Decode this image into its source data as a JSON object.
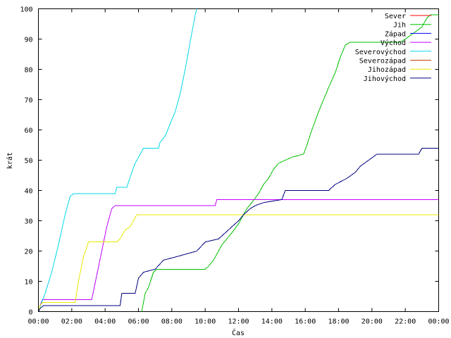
{
  "chart_data": {
    "type": "line",
    "xlabel": "Čas",
    "ylabel": "krát",
    "xlim": [
      0,
      24
    ],
    "ylim": [
      0,
      100
    ],
    "x_ticks": [
      {
        "value": 0,
        "label": "00:00"
      },
      {
        "value": 2,
        "label": "02:00"
      },
      {
        "value": 4,
        "label": "04:00"
      },
      {
        "value": 6,
        "label": "06:00"
      },
      {
        "value": 8,
        "label": "08:00"
      },
      {
        "value": 10,
        "label": "10:00"
      },
      {
        "value": 12,
        "label": "12:00"
      },
      {
        "value": 14,
        "label": "14:00"
      },
      {
        "value": 16,
        "label": "16:00"
      },
      {
        "value": 18,
        "label": "18:00"
      },
      {
        "value": 20,
        "label": "20:00"
      },
      {
        "value": 22,
        "label": "22:00"
      },
      {
        "value": 24,
        "label": "00:00"
      }
    ],
    "y_ticks": [
      0,
      10,
      20,
      30,
      40,
      50,
      60,
      70,
      80,
      90,
      100
    ],
    "grid": false,
    "legend_position": "top-right",
    "series": [
      {
        "name": "Sever",
        "color": "#ff0000",
        "points": []
      },
      {
        "name": "Jih",
        "color": "#00c000",
        "points": [
          [
            6.2,
            0
          ],
          [
            6.4,
            6
          ],
          [
            6.6,
            8
          ],
          [
            6.9,
            13
          ],
          [
            7.1,
            14
          ],
          [
            8.5,
            14
          ],
          [
            10.0,
            14
          ],
          [
            10.2,
            15
          ],
          [
            10.5,
            17
          ],
          [
            10.8,
            20
          ],
          [
            11.0,
            22
          ],
          [
            11.3,
            24
          ],
          [
            11.6,
            26
          ],
          [
            12.0,
            29
          ],
          [
            12.2,
            31
          ],
          [
            12.5,
            34
          ],
          [
            12.8,
            36
          ],
          [
            13.2,
            39
          ],
          [
            13.5,
            42
          ],
          [
            13.8,
            44
          ],
          [
            14.1,
            47
          ],
          [
            14.4,
            49
          ],
          [
            14.8,
            50
          ],
          [
            15.2,
            51
          ],
          [
            15.9,
            52
          ],
          [
            16.1,
            55
          ],
          [
            16.4,
            60
          ],
          [
            16.8,
            66
          ],
          [
            17.1,
            70
          ],
          [
            17.4,
            74
          ],
          [
            17.8,
            79
          ],
          [
            18.1,
            84
          ],
          [
            18.4,
            88
          ],
          [
            18.7,
            89
          ],
          [
            21.7,
            89
          ],
          [
            22.0,
            90
          ],
          [
            22.5,
            92
          ],
          [
            23.0,
            94
          ],
          [
            23.3,
            97
          ],
          [
            23.5,
            98
          ],
          [
            24.0,
            98
          ]
        ]
      },
      {
        "name": "Západ",
        "color": "#0000ff",
        "points": []
      },
      {
        "name": "Východ",
        "color": "#c000ff",
        "points": [
          [
            0,
            0
          ],
          [
            0.1,
            2
          ],
          [
            0.25,
            4
          ],
          [
            3.2,
            4
          ],
          [
            3.5,
            12
          ],
          [
            3.8,
            20
          ],
          [
            4.1,
            28
          ],
          [
            4.4,
            34
          ],
          [
            4.6,
            35
          ],
          [
            10.6,
            35
          ],
          [
            10.7,
            37
          ],
          [
            24.0,
            37
          ]
        ]
      },
      {
        "name": "Severovýchod",
        "color": "#00d8e8",
        "points": [
          [
            0,
            0
          ],
          [
            0.2,
            3
          ],
          [
            0.4,
            6
          ],
          [
            0.8,
            13
          ],
          [
            1.2,
            22
          ],
          [
            1.6,
            32
          ],
          [
            1.9,
            38
          ],
          [
            2.1,
            39
          ],
          [
            4.6,
            39
          ],
          [
            4.7,
            41
          ],
          [
            5.3,
            41
          ],
          [
            5.6,
            46
          ],
          [
            5.8,
            49
          ],
          [
            6.1,
            52
          ],
          [
            6.3,
            54
          ],
          [
            7.2,
            54
          ],
          [
            7.3,
            56
          ],
          [
            7.6,
            58
          ],
          [
            7.9,
            62
          ],
          [
            8.2,
            66
          ],
          [
            8.5,
            72
          ],
          [
            8.8,
            80
          ],
          [
            9.0,
            86
          ],
          [
            9.2,
            92
          ],
          [
            9.4,
            98
          ],
          [
            9.5,
            100
          ]
        ]
      },
      {
        "name": "Severozápad",
        "color": "#c04000",
        "points": []
      },
      {
        "name": "Jihozápad",
        "color": "#e8e800",
        "points": [
          [
            0,
            0
          ],
          [
            0.1,
            2
          ],
          [
            0.25,
            3
          ],
          [
            2.2,
            3
          ],
          [
            2.4,
            10
          ],
          [
            2.7,
            18
          ],
          [
            3.0,
            23
          ],
          [
            4.7,
            23
          ],
          [
            4.9,
            24
          ],
          [
            5.2,
            27
          ],
          [
            5.5,
            28
          ],
          [
            5.7,
            30
          ],
          [
            5.9,
            32
          ],
          [
            24.0,
            32
          ]
        ]
      },
      {
        "name": "Jihovýchod",
        "color": "#000080",
        "points": [
          [
            0,
            0
          ],
          [
            0.1,
            1
          ],
          [
            0.3,
            2
          ],
          [
            4.9,
            2
          ],
          [
            5.0,
            6
          ],
          [
            5.8,
            6
          ],
          [
            6.0,
            11
          ],
          [
            6.3,
            13
          ],
          [
            7.0,
            14
          ],
          [
            7.5,
            17
          ],
          [
            8.2,
            18
          ],
          [
            9.5,
            20
          ],
          [
            10.0,
            23
          ],
          [
            10.8,
            24
          ],
          [
            11.2,
            26
          ],
          [
            11.6,
            28
          ],
          [
            12.0,
            30
          ],
          [
            12.3,
            32
          ],
          [
            12.7,
            34
          ],
          [
            13.0,
            35
          ],
          [
            13.5,
            36
          ],
          [
            14.6,
            37
          ],
          [
            14.8,
            40
          ],
          [
            17.4,
            40
          ],
          [
            17.8,
            42
          ],
          [
            18.5,
            44
          ],
          [
            19.0,
            46
          ],
          [
            19.3,
            48
          ],
          [
            19.8,
            50
          ],
          [
            20.3,
            52
          ],
          [
            22.8,
            52
          ],
          [
            23.0,
            54
          ],
          [
            24.0,
            54
          ]
        ]
      }
    ]
  }
}
